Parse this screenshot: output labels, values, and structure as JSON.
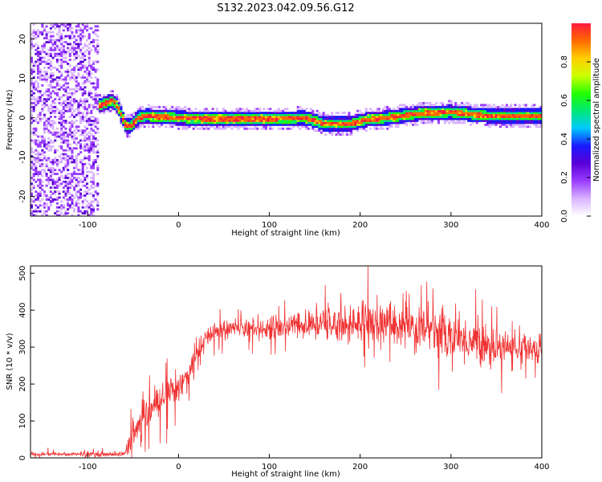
{
  "figure": {
    "title": "S132.2023.042.09.56.G12"
  },
  "chart_data": [
    {
      "type": "heatmap",
      "xlabel": "Height of straight line (km)",
      "ylabel": "Frequency (Hz)",
      "xlim": [
        -163,
        400
      ],
      "ylim": [
        -25,
        24
      ],
      "xticks": [
        -100,
        0,
        100,
        200,
        300,
        400
      ],
      "yticks": [
        -20,
        -10,
        0,
        10,
        20
      ],
      "grid": false,
      "colorbar": {
        "label": "Normalized spectral amplitude",
        "range": [
          0,
          1
        ],
        "ticks": [
          0.0,
          0.2,
          0.4,
          0.6,
          0.8
        ]
      },
      "colormap": [
        "#ffffff",
        "#d9b3ff",
        "#9a3dff",
        "#5a00d6",
        "#1a1aff",
        "#00c8ff",
        "#00e878",
        "#22ff00",
        "#ccff00",
        "#ffd000",
        "#ff6a00",
        "#ff1a3c"
      ],
      "noise_region_x": [
        -163,
        -88
      ],
      "center_frequency_track": [
        {
          "x": -88,
          "y": 3
        },
        {
          "x": -72,
          "y": 4.5
        },
        {
          "x": -65,
          "y": 2
        },
        {
          "x": -58,
          "y": -2
        },
        {
          "x": -52,
          "y": -2
        },
        {
          "x": -45,
          "y": 0
        },
        {
          "x": -35,
          "y": 0.5
        },
        {
          "x": 0,
          "y": 0
        },
        {
          "x": 50,
          "y": -0.3
        },
        {
          "x": 100,
          "y": -0.2
        },
        {
          "x": 140,
          "y": 0
        },
        {
          "x": 160,
          "y": -1.5
        },
        {
          "x": 190,
          "y": -1.5
        },
        {
          "x": 205,
          "y": -0.5
        },
        {
          "x": 230,
          "y": 0
        },
        {
          "x": 260,
          "y": 1
        },
        {
          "x": 300,
          "y": 1.5
        },
        {
          "x": 340,
          "y": 0.5
        },
        {
          "x": 400,
          "y": 0.5
        }
      ]
    },
    {
      "type": "line",
      "xlabel": "Height of straight line (km)",
      "ylabel": "SNR (10 * v/v)",
      "xlim": [
        -163,
        400
      ],
      "ylim": [
        0,
        520
      ],
      "xticks": [
        -100,
        0,
        100,
        200,
        300,
        400
      ],
      "yticks": [
        0,
        100,
        200,
        300,
        400,
        500
      ],
      "grid": false,
      "series_color": "#f03232",
      "trend": {
        "x": [
          -163,
          -60,
          -50,
          -40,
          -30,
          -20,
          -10,
          0,
          10,
          20,
          30,
          40,
          60,
          100,
          150,
          200,
          250,
          280,
          300,
          330,
          360,
          400
        ],
        "y": [
          10,
          10,
          60,
          100,
          130,
          150,
          170,
          190,
          230,
          280,
          320,
          345,
          350,
          355,
          360,
          365,
          360,
          350,
          330,
          310,
          300,
          295
        ]
      },
      "spread": {
        "x": [
          -163,
          -60,
          -50,
          0,
          40,
          100,
          150,
          200,
          250,
          300,
          350,
          400
        ],
        "y": [
          6,
          8,
          45,
          45,
          30,
          35,
          45,
          65,
          80,
          75,
          55,
          40
        ]
      }
    }
  ]
}
